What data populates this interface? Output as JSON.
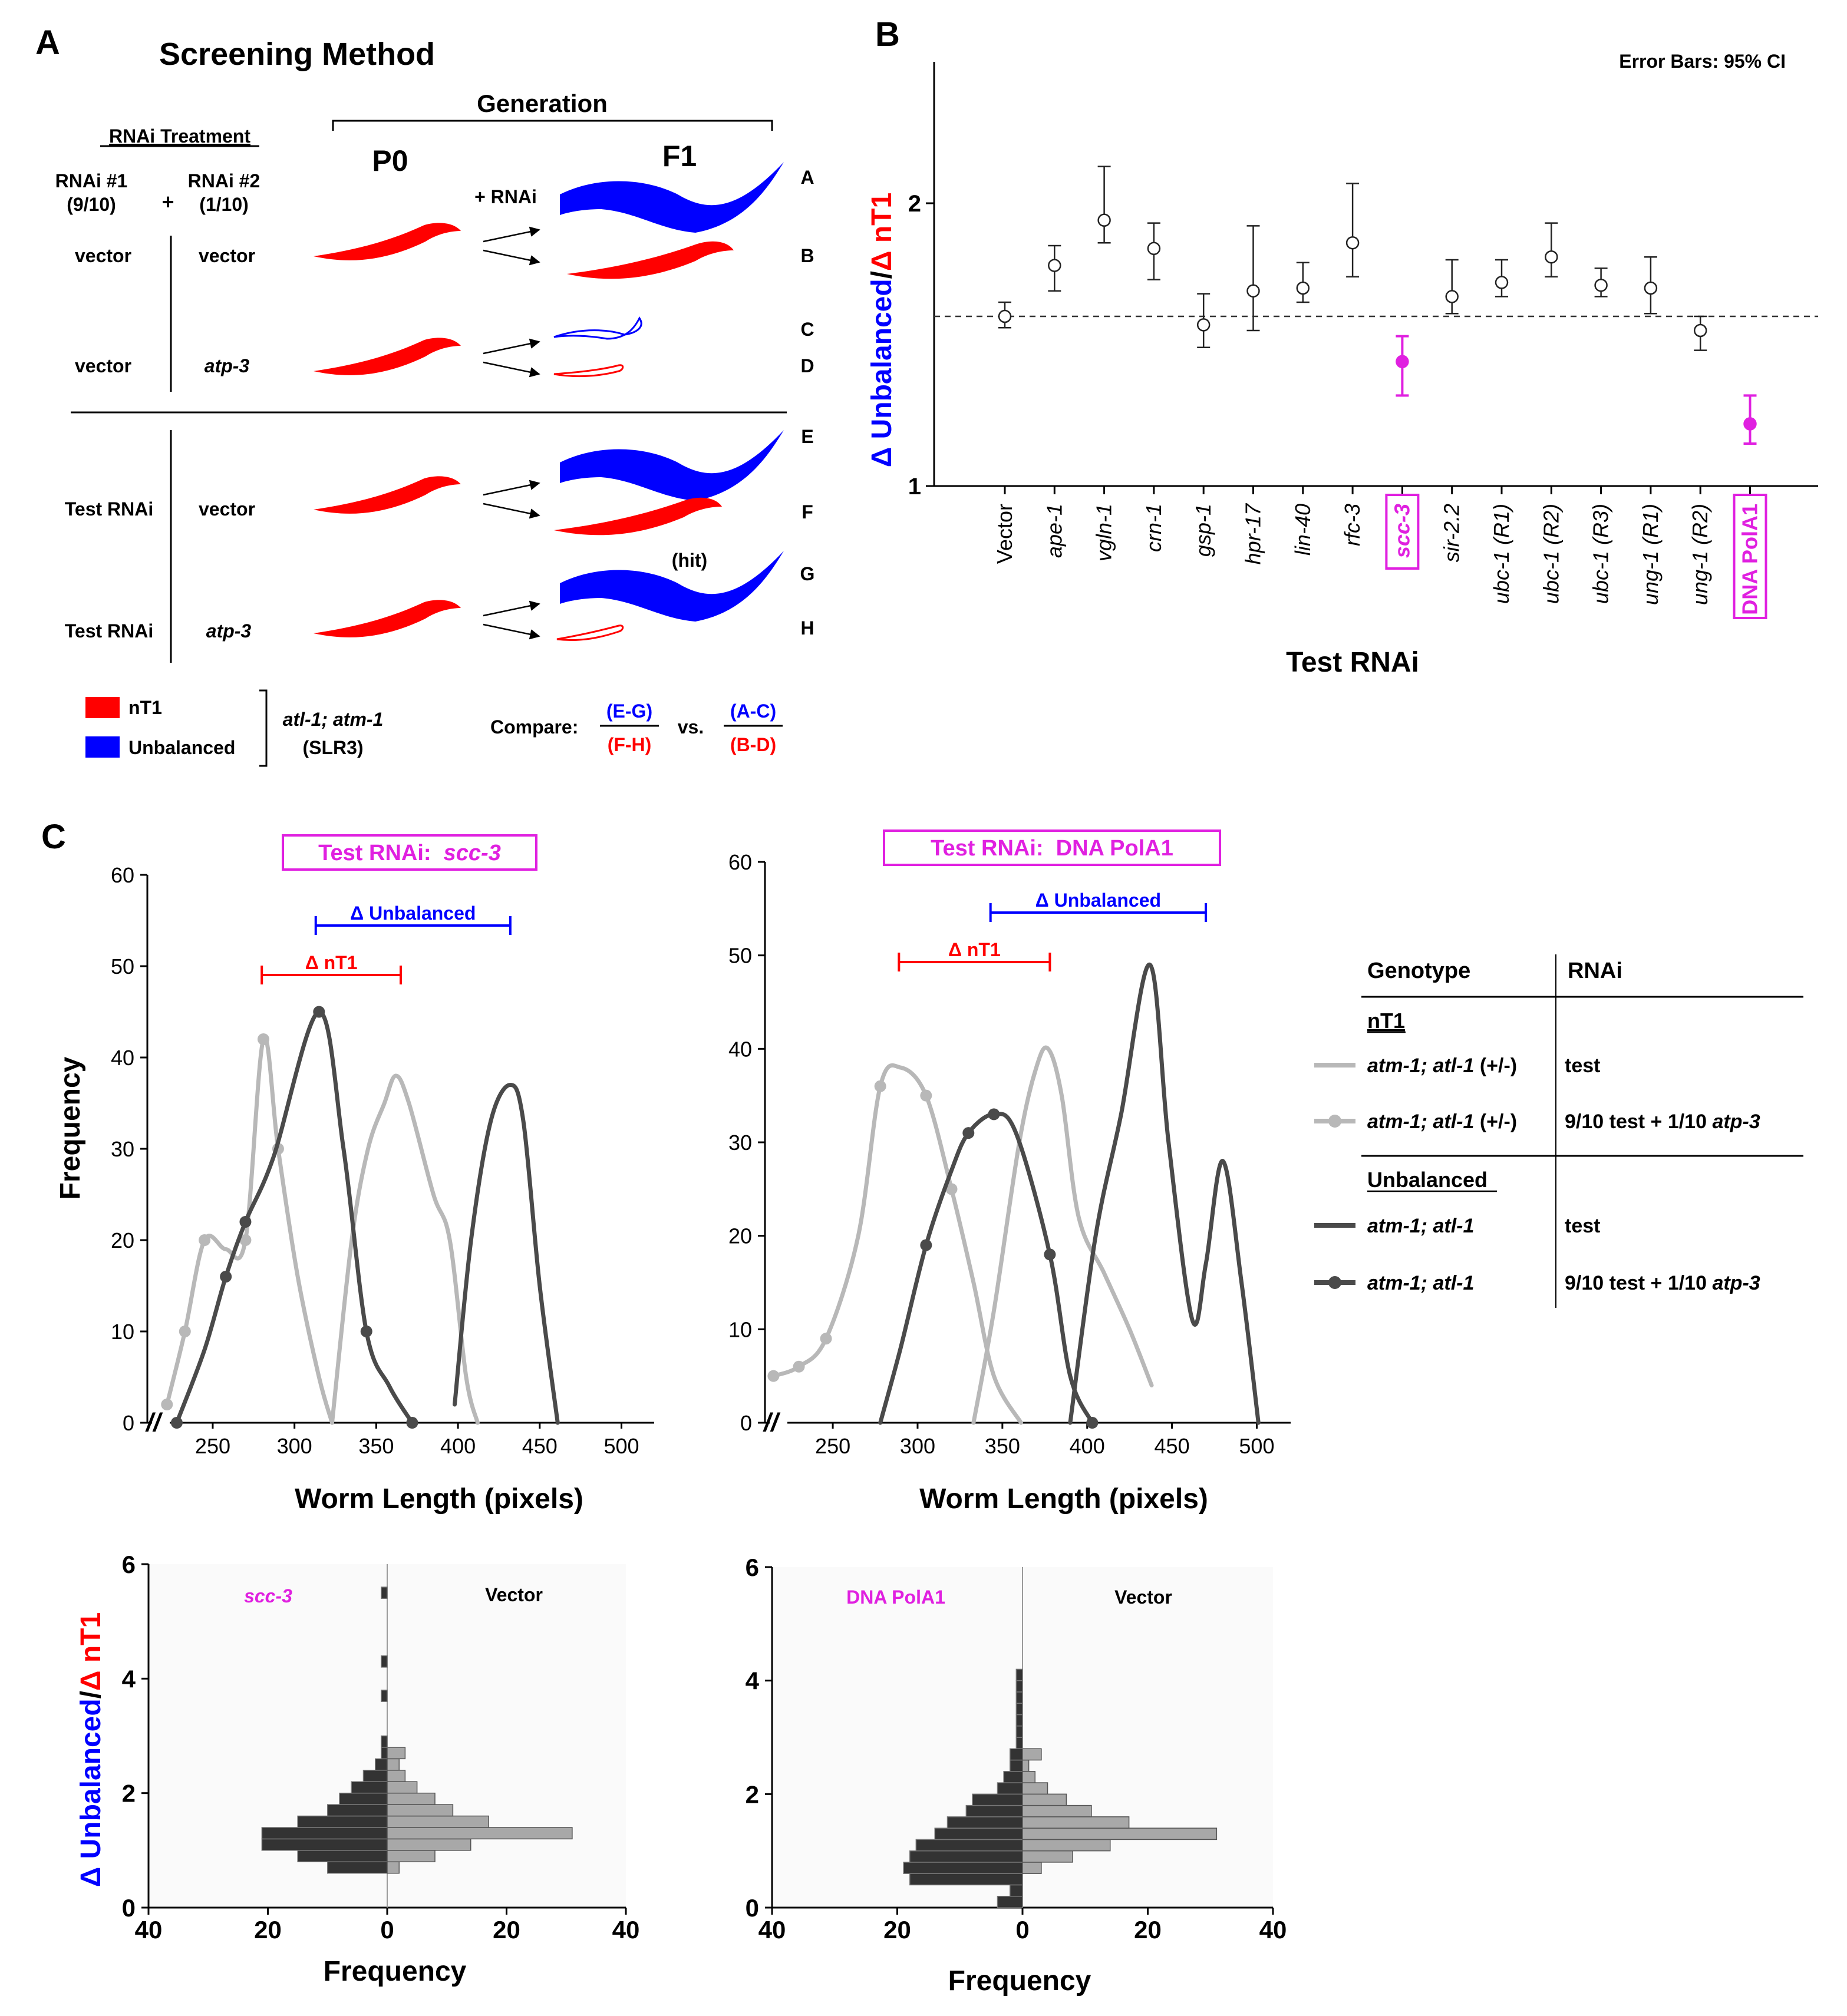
{
  "panel_a": {
    "letter": "A",
    "title": "Screening Method",
    "generation_label": "Generation",
    "p0_label": "P0",
    "f1_label": "F1",
    "rnai_treatment_label": "RNAi Treatment",
    "rnai1_label": "RNAi #1",
    "rnai1_fraction": "(9/10)",
    "plus": "+",
    "rnai2_label": "RNAi #2",
    "rnai2_fraction": "(1/10)",
    "plus_rnai": "+ RNAi",
    "rows": [
      {
        "rnai1": "vector",
        "rnai2": "vector"
      },
      {
        "rnai1": "vector",
        "rnai2": "atp-3"
      },
      {
        "rnai1": "Test RNAi",
        "rnai2": "vector"
      },
      {
        "rnai1": "Test RNAi",
        "rnai2": "atp-3"
      }
    ],
    "outcome_letters": [
      "A",
      "B",
      "C",
      "D",
      "E",
      "F",
      "G",
      "H"
    ],
    "hit_label": "(hit)",
    "legend": {
      "nt1": "nT1",
      "unbalanced": "Unbalanced",
      "strain_line1": "atl-1; atm-1",
      "strain_line2": "(SLR3)"
    },
    "compare_label": "Compare:",
    "compare_test_top": "(E-G)",
    "compare_test_bottom": "(F-H)",
    "vs_label": "vs.",
    "compare_ctrl_top": "(A-C)",
    "compare_ctrl_bottom": "(B-D)",
    "colors": {
      "red": "#ff0000",
      "blue": "#0000ff"
    }
  },
  "panel_b": {
    "letter": "B",
    "error_note": "Error Bars: 95% CI",
    "ylabel_part1": "Δ Unbalanced",
    "ylabel_slash": "/",
    "ylabel_part2": "Δ nT1",
    "xlabel": "Test RNAi"
  },
  "panel_c": {
    "letter": "C",
    "title_left_prefix": "Test RNAi:  ",
    "title_left_gene": "scc-3",
    "title_right": "Test RNAi:  DNA PolA1",
    "delta_unbalanced": "Δ Unbalanced",
    "delta_nt1": "Δ nT1",
    "ylabel": "Frequency",
    "xlabel": "Worm Length (pixels)",
    "axis_break": "//",
    "legend_table": {
      "col_genotype": "Genotype",
      "col_rnai": "RNAi",
      "nt1_header": "nT1",
      "unbalanced_header": "Unbalanced",
      "rows": [
        {
          "genotype_gene": "atm-1; atl-1",
          "genotype_suffix": " (+/-)",
          "rnai_pre": "test",
          "rnai_gene": ""
        },
        {
          "genotype_gene": "atm-1; atl-1",
          "genotype_suffix": " (+/-)",
          "rnai_pre": "9/10 test + 1/10 ",
          "rnai_gene": "atp-3"
        },
        {
          "genotype_gene": "atm-1; atl-1",
          "genotype_suffix": "",
          "rnai_pre": "test",
          "rnai_gene": ""
        },
        {
          "genotype_gene": "atm-1; atl-1",
          "genotype_suffix": "",
          "rnai_pre": "9/10 test + 1/10 ",
          "rnai_gene": "atp-3"
        }
      ]
    },
    "hist_ylabel_part1": "Δ Unbalanced",
    "hist_ylabel_slash": "/",
    "hist_ylabel_part2": "Δ nT1",
    "hist_xlabel": "Frequency",
    "hist_left_label": "scc-3",
    "hist_right_label_left": "DNA PolA1",
    "hist_vector_label": "Vector"
  },
  "chart_data": [
    {
      "id": "B",
      "type": "scatter",
      "title": "",
      "xlabel": "Test RNAi",
      "ylabel": "Δ Unbalanced/Δ nT1",
      "ylim": [
        1.0,
        2.5
      ],
      "yticks": [
        1,
        2
      ],
      "reference_line": 1.6,
      "categories": [
        "Vector",
        "ape-1",
        "vgln-1",
        "crn-1",
        "gsp-1",
        "hpr-17",
        "lin-40",
        "rfc-3",
        "scc-3",
        "sir-2.2",
        "ubc-1 (R1)",
        "ubc-1 (R2)",
        "ubc-1 (R3)",
        "ung-1 (R1)",
        "ung-1 (R2)",
        "DNA PolA1"
      ],
      "values": [
        1.6,
        1.78,
        1.94,
        1.84,
        1.57,
        1.69,
        1.7,
        1.86,
        1.44,
        1.67,
        1.72,
        1.81,
        1.71,
        1.7,
        1.55,
        1.22
      ],
      "ci_low": [
        1.56,
        1.69,
        1.86,
        1.73,
        1.49,
        1.55,
        1.65,
        1.74,
        1.32,
        1.61,
        1.67,
        1.74,
        1.67,
        1.61,
        1.48,
        1.15
      ],
      "ci_high": [
        1.65,
        1.85,
        2.13,
        1.93,
        1.68,
        1.92,
        1.79,
        2.07,
        1.53,
        1.8,
        1.8,
        1.93,
        1.77,
        1.81,
        1.6,
        1.32
      ],
      "highlight": [
        false,
        false,
        false,
        false,
        false,
        false,
        false,
        false,
        true,
        false,
        false,
        false,
        false,
        false,
        false,
        true
      ],
      "highlight_color": "#e020e0"
    },
    {
      "id": "C-left",
      "type": "line",
      "title": "Test RNAi: scc-3",
      "xlabel": "Worm Length (pixels)",
      "ylabel": "Frequency",
      "xlim": [
        210,
        520
      ],
      "ylim": [
        0,
        60
      ],
      "xticks": [
        250,
        300,
        350,
        400,
        450,
        500
      ],
      "yticks": [
        0,
        10,
        20,
        30,
        40,
        50,
        60
      ],
      "delta_unbalanced": [
        313,
        432
      ],
      "delta_nt1": [
        280,
        365
      ],
      "series": [
        {
          "name": "nT1 test",
          "style": "light",
          "markers": false,
          "x": [
            323,
            335,
            345,
            355,
            362,
            370,
            385,
            395,
            405,
            412
          ],
          "y": [
            0,
            20,
            30,
            35,
            38,
            35,
            25,
            20,
            5,
            0
          ]
        },
        {
          "name": "nT1 atp-3",
          "style": "light",
          "markers": true,
          "marker_idx": [
            0,
            1,
            2,
            4,
            5,
            6
          ],
          "x": [
            222,
            233,
            245,
            258,
            270,
            281,
            290,
            302,
            315,
            323
          ],
          "y": [
            2,
            10,
            20,
            19,
            20,
            42,
            30,
            16,
            5,
            0
          ]
        },
        {
          "name": "Unbalanced test",
          "style": "dark",
          "markers": false,
          "x": [
            398,
            408,
            420,
            432,
            440,
            450,
            461
          ],
          "y": [
            2,
            20,
            33,
            37,
            33,
            15,
            0
          ]
        },
        {
          "name": "Unbalanced atp-3",
          "style": "dark",
          "markers": true,
          "marker_idx": [
            0,
            2,
            3,
            5,
            7,
            9
          ],
          "x": [
            228,
            245,
            258,
            270,
            287,
            315,
            330,
            344,
            358,
            372
          ],
          "y": [
            0,
            8,
            16,
            22,
            29,
            45,
            30,
            10,
            4,
            0
          ]
        }
      ]
    },
    {
      "id": "C-right",
      "type": "line",
      "title": "Test RNAi: DNA PolA1",
      "xlabel": "Worm Length (pixels)",
      "ylabel": "Frequency",
      "xlim": [
        210,
        520
      ],
      "ylim": [
        0,
        60
      ],
      "xticks": [
        250,
        300,
        350,
        400,
        450,
        500
      ],
      "yticks": [
        0,
        10,
        20,
        30,
        40,
        50,
        60
      ],
      "delta_unbalanced": [
        343,
        470
      ],
      "delta_nt1": [
        289,
        378
      ],
      "series": [
        {
          "name": "nT1 test",
          "style": "light",
          "markers": false,
          "x": [
            333,
            345,
            360,
            370,
            377,
            385,
            395,
            410,
            425,
            438
          ],
          "y": [
            0,
            12,
            30,
            38,
            40,
            35,
            22,
            16,
            10,
            4
          ]
        },
        {
          "name": "nT1 atp-3",
          "style": "light",
          "markers": true,
          "marker_idx": [
            0,
            1,
            2,
            4,
            6,
            7
          ],
          "x": [
            215,
            230,
            246,
            265,
            278,
            290,
            305,
            320,
            333,
            345,
            361
          ],
          "y": [
            5,
            6,
            9,
            20,
            36,
            38,
            35,
            25,
            15,
            5,
            0
          ]
        },
        {
          "name": "Unbalanced test",
          "style": "dark",
          "markers": false,
          "x": [
            390,
            405,
            420,
            437,
            448,
            462,
            470,
            480,
            491,
            501
          ],
          "y": [
            0,
            20,
            33,
            49,
            30,
            11,
            17,
            28,
            15,
            0
          ]
        },
        {
          "name": "Unbalanced atp-3",
          "style": "dark",
          "markers": true,
          "marker_idx": [
            2,
            4,
            5,
            7,
            9
          ],
          "x": [
            278,
            290,
            305,
            320,
            330,
            345,
            358,
            378,
            390,
            403
          ],
          "y": [
            0,
            8,
            19,
            27,
            31,
            33,
            31,
            18,
            5,
            0
          ]
        }
      ]
    },
    {
      "id": "C-hist-left",
      "type": "bar",
      "orientation": "horizontal-back-to-back",
      "xlabel": "Frequency",
      "ylabel": "Δ Unbalanced/Δ nT1",
      "xlim": [
        -40,
        40
      ],
      "xticks": [
        -40,
        -20,
        0,
        20,
        40
      ],
      "xtick_labels": [
        "40",
        "20",
        "0",
        "20",
        "40"
      ],
      "ylim": [
        0,
        6
      ],
      "yticks": [
        0,
        2,
        4,
        6
      ],
      "bin_width": 0.2,
      "bins_start": [
        0.6,
        0.8,
        1.0,
        1.2,
        1.4,
        1.6,
        1.8,
        2.0,
        2.2,
        2.4,
        2.6,
        2.8,
        3.6,
        4.2,
        5.4
      ],
      "test_values": [
        10,
        15,
        21,
        21,
        15,
        10,
        8,
        6,
        4,
        2,
        1,
        1,
        1,
        1,
        1
      ],
      "vector_values": [
        2,
        8,
        14,
        31,
        17,
        11,
        8,
        5,
        3,
        2,
        3,
        0,
        0,
        0,
        0
      ]
    },
    {
      "id": "C-hist-right",
      "type": "bar",
      "orientation": "horizontal-back-to-back",
      "xlabel": "Frequency",
      "ylabel": "Δ Unbalanced/Δ nT1",
      "xlim": [
        -40,
        40
      ],
      "xticks": [
        -40,
        -20,
        0,
        20,
        40
      ],
      "xtick_labels": [
        "40",
        "20",
        "0",
        "20",
        "40"
      ],
      "ylim": [
        0,
        6
      ],
      "yticks": [
        0,
        2,
        4,
        6
      ],
      "bin_width": 0.2,
      "bins_start": [
        0.0,
        0.2,
        0.4,
        0.6,
        0.8,
        1.0,
        1.2,
        1.4,
        1.6,
        1.8,
        2.0,
        2.2,
        2.4,
        2.6,
        2.8,
        3.0,
        3.2,
        3.4,
        3.6,
        3.8,
        4.0
      ],
      "test_values": [
        4,
        2,
        18,
        19,
        18,
        17,
        14,
        12,
        9,
        8,
        4,
        3,
        2,
        2,
        1,
        1,
        1,
        1,
        1,
        1,
        1
      ],
      "vector_values": [
        0,
        0,
        0,
        3,
        8,
        14,
        31,
        17,
        11,
        7,
        4,
        2,
        1,
        3,
        0,
        0,
        0,
        0,
        0,
        0,
        0
      ]
    }
  ]
}
